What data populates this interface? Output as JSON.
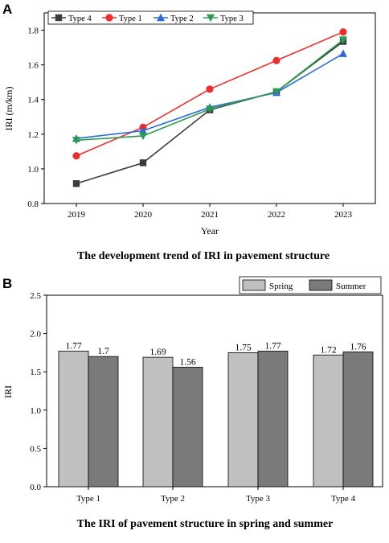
{
  "panels": {
    "a_letter": "A",
    "b_letter": "B"
  },
  "chart_data": [
    {
      "type": "line",
      "caption": "The development trend of IRI in pavement structure",
      "xlabel": "Year",
      "ylabel": "IRI (m/km)",
      "categories": [
        "2019",
        "2020",
        "2021",
        "2022",
        "2023"
      ],
      "ylim": [
        0.8,
        1.9
      ],
      "yticks": [
        "0.8",
        "1.0",
        "1.2",
        "1.4",
        "1.6",
        "1.8"
      ],
      "legend_position": "top-left",
      "series": [
        {
          "name": "Type 4",
          "values": [
            0.915,
            1.035,
            1.34,
            1.445,
            1.735
          ],
          "color": "#3c3c3c",
          "marker": "square"
        },
        {
          "name": "Type 1",
          "values": [
            1.075,
            1.24,
            1.46,
            1.625,
            1.79
          ],
          "color": "#e8302f",
          "marker": "circle"
        },
        {
          "name": "Type 2",
          "values": [
            1.175,
            1.22,
            1.355,
            1.44,
            1.665
          ],
          "color": "#2a6bd8",
          "marker": "triangle-up"
        },
        {
          "name": "Type 3",
          "values": [
            1.165,
            1.19,
            1.345,
            1.445,
            1.745
          ],
          "color": "#2e9a50",
          "marker": "triangle-down"
        }
      ]
    },
    {
      "type": "bar",
      "caption": "The IRI of pavement structure in spring and summer",
      "xlabel": "",
      "ylabel": "IRI",
      "categories": [
        "Type 1",
        "Type 2",
        "Type 3",
        "Type 4"
      ],
      "ylim": [
        0.0,
        2.5
      ],
      "yticks": [
        "0.0",
        "0.5",
        "1.0",
        "1.5",
        "2.0",
        "2.5"
      ],
      "legend_position": "top-right",
      "series": [
        {
          "name": "Spring",
          "values": [
            1.77,
            1.69,
            1.75,
            1.72
          ],
          "labels": [
            "1.77",
            "1.69",
            "1.75",
            "1.72"
          ],
          "color": "#c0c0c0"
        },
        {
          "name": "Summer",
          "values": [
            1.7,
            1.56,
            1.77,
            1.76
          ],
          "labels": [
            "1.7",
            "1.56",
            "1.77",
            "1.76"
          ],
          "color": "#7a7a7a"
        }
      ]
    }
  ]
}
